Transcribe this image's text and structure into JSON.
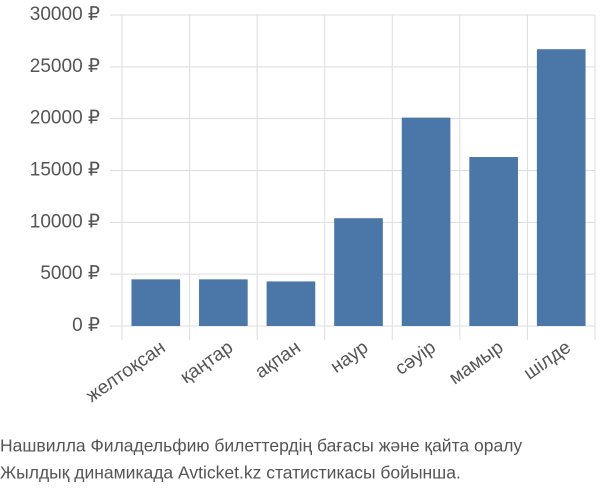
{
  "chart_data": {
    "type": "bar",
    "categories": [
      "желтоқсан",
      "қаңтар",
      "ақпан",
      "наур",
      "сәуір",
      "мамыр",
      "шілде"
    ],
    "values": [
      4500,
      4500,
      4300,
      10400,
      20100,
      16300,
      26700
    ],
    "color": "#4a76a8",
    "ylim": [
      0,
      30000
    ],
    "yticks": [
      {
        "value": 0,
        "label": "0 ₽"
      },
      {
        "value": 5000,
        "label": "5000 ₽"
      },
      {
        "value": 10000,
        "label": "10000 ₽"
      },
      {
        "value": 15000,
        "label": "15000 ₽"
      },
      {
        "value": 20000,
        "label": "20000 ₽"
      },
      {
        "value": 25000,
        "label": "25000 ₽"
      },
      {
        "value": 30000,
        "label": "30000 ₽"
      }
    ],
    "grid": true,
    "caption": [
      "Нашвилла Филадельфию билеттердің бағасы және қайта оралу",
      "Жылдық динамикада Avticket.kz статистикасы бойынша."
    ]
  }
}
